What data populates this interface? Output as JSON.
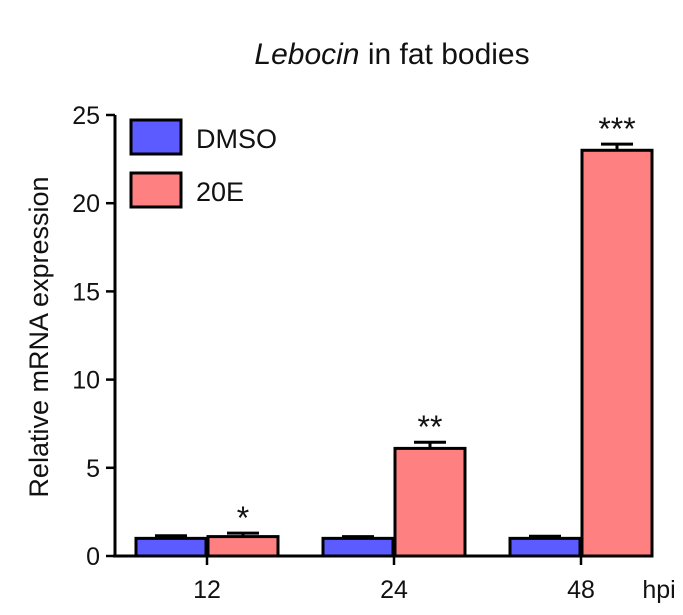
{
  "chart_data": {
    "type": "bar",
    "title_italic": "Lebocin",
    "title_rest": " in fat bodies",
    "xlabel": "hpi",
    "ylabel": "Relative mRNA expression",
    "categories": [
      "12",
      "24",
      "48"
    ],
    "ylim": [
      0,
      25
    ],
    "yticks": [
      0,
      5,
      10,
      15,
      20,
      25
    ],
    "series": [
      {
        "name": "DMSO",
        "color": "#5b5bff",
        "values": [
          1.0,
          1.0,
          1.0
        ],
        "errors": [
          0.15,
          0.1,
          0.12
        ]
      },
      {
        "name": "20E",
        "color": "#ff8080",
        "values": [
          1.1,
          6.1,
          23.0
        ],
        "errors": [
          0.2,
          0.35,
          0.35
        ]
      }
    ],
    "annotations": [
      "*",
      "**",
      "***"
    ],
    "legend_position": "top-left",
    "grid": false
  }
}
